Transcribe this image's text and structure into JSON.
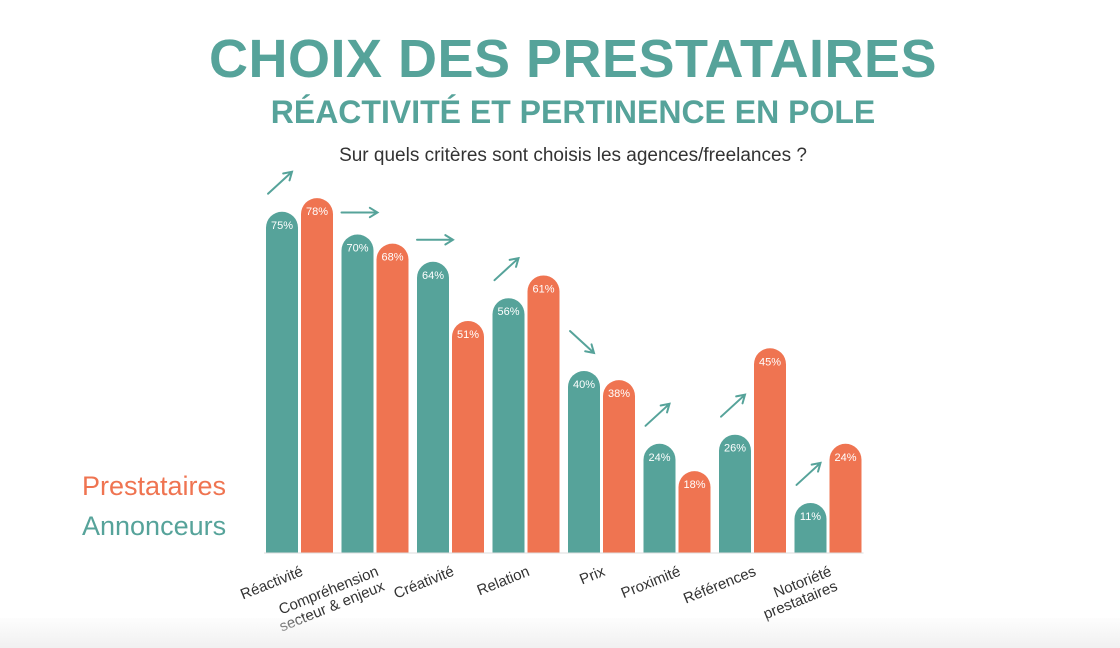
{
  "title": "CHOIX DES PRESTATAIRES",
  "subtitle": "RÉACTIVITÉ ET PERTINENCE EN POLE",
  "question": "Sur quels critères sont choisis les agences/freelances ?",
  "colors": {
    "annonceurs": "#56a39a",
    "prestataires": "#ef7451",
    "title": "#56a39a",
    "axis": "#333333"
  },
  "legend": [
    {
      "name": "Prestataires",
      "color": "#ef7451"
    },
    {
      "name": "Annonceurs",
      "color": "#56a39a"
    }
  ],
  "chart_data": {
    "type": "bar",
    "categories": [
      [
        "Réactivité"
      ],
      [
        "Compréhension",
        "secteur & enjeux"
      ],
      [
        "Créativité"
      ],
      [
        "Relation"
      ],
      [
        "Prix"
      ],
      [
        "Proximité"
      ],
      [
        "Références"
      ],
      [
        "Notoriété",
        "prestataires"
      ]
    ],
    "series": [
      {
        "name": "Annonceurs",
        "values": [
          75,
          70,
          64,
          56,
          40,
          24,
          26,
          11
        ],
        "labels": [
          "75%",
          "70%",
          "64%",
          "56%",
          "40%",
          "24%",
          "26%",
          "11%"
        ]
      },
      {
        "name": "Prestataires",
        "values": [
          78,
          68,
          51,
          61,
          38,
          18,
          45,
          24
        ],
        "labels": [
          "78%",
          "68%",
          "51%",
          "61%",
          "38%",
          "18%",
          "45%",
          "24%"
        ]
      }
    ],
    "trend_arrows": [
      "up",
      "flat",
      "flat",
      "up",
      "down",
      "up",
      "up",
      "up"
    ],
    "ylim": [
      0,
      100
    ],
    "grid": false,
    "legend_position": "left"
  }
}
